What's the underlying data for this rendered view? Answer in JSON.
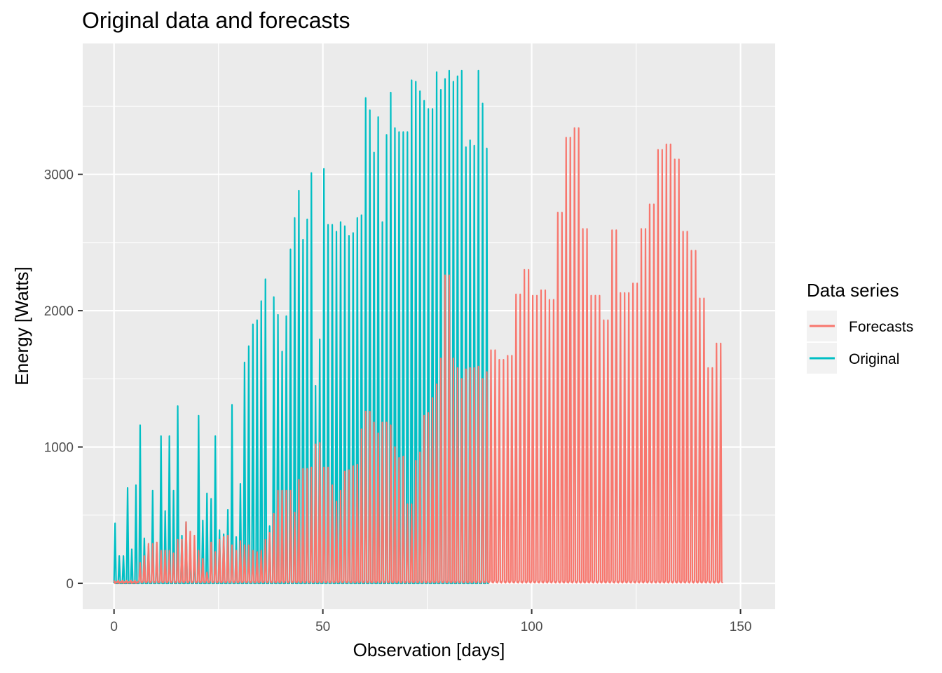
{
  "chart_data": {
    "type": "line",
    "title": "Original data and forecasts",
    "xlabel": "Observation [days]",
    "ylabel": "Energy [Watts]",
    "xlim": [
      -7.5,
      158.3
    ],
    "ylim": [
      -190,
      3960
    ],
    "x_ticks": [
      0,
      50,
      100,
      150
    ],
    "y_ticks": [
      0,
      1000,
      2000,
      3000
    ],
    "x_tick_labels": [
      "0",
      "50",
      "100",
      "150"
    ],
    "y_tick_labels": [
      "0",
      "1000",
      "2000",
      "3000"
    ],
    "grid": true,
    "legend": {
      "title": "Data series",
      "position": "right"
    },
    "background": "#ebebeb",
    "x_step_days": 0.25,
    "series": [
      {
        "name": "Forecasts",
        "color": "#f8766d",
        "daily_peaks": [
          0,
          0,
          0,
          0,
          0,
          0,
          150,
          200,
          290,
          290,
          300,
          240,
          240,
          240,
          220,
          320,
          320,
          450,
          380,
          350,
          240,
          180,
          80,
          300,
          230,
          320,
          340,
          350,
          280,
          240,
          310,
          280,
          280,
          240,
          230,
          240,
          320,
          370,
          510,
          680,
          680,
          680,
          680,
          520,
          760,
          840,
          840,
          850,
          1020,
          1030,
          850,
          850,
          720,
          600,
          680,
          820,
          830,
          860,
          870,
          1130,
          1260,
          1260,
          1180,
          1100,
          1180,
          1180,
          1160,
          1000,
          920,
          930,
          580,
          580,
          900,
          960,
          1230,
          1250,
          1360,
          1460,
          1650,
          2260,
          2260,
          1650,
          1580,
          1500,
          1570,
          1580,
          1580,
          1590,
          1500,
          1550,
          1710,
          1710,
          1640,
          1640,
          1670,
          1670,
          2120,
          2120,
          2300,
          2300,
          2110,
          2110,
          2150,
          2150,
          2080,
          2080,
          2720,
          2720,
          3270,
          3270,
          3340,
          3340,
          2600,
          2600,
          2110,
          2110,
          2110,
          1930,
          1930,
          2590,
          2590,
          2130,
          2130,
          2130,
          2200,
          2200,
          2600,
          2600,
          2780,
          2780,
          3180,
          3180,
          3220,
          3220,
          3110,
          3110,
          2580,
          2580,
          2440,
          2440,
          2090,
          2090,
          1580,
          1580,
          1760,
          1760
        ],
        "night_baseline": 20
      },
      {
        "name": "Original",
        "color": "#00bfc4",
        "daily_peaks": [
          440,
          200,
          200,
          700,
          250,
          720,
          1160,
          330,
          270,
          680,
          260,
          1080,
          530,
          1080,
          680,
          1300,
          350,
          450,
          280,
          250,
          1230,
          460,
          660,
          620,
          1080,
          390,
          360,
          540,
          1310,
          340,
          730,
          1620,
          1740,
          1900,
          1930,
          2070,
          2230,
          420,
          2100,
          1970,
          1700,
          1960,
          2450,
          2680,
          2880,
          2520,
          2670,
          3010,
          1450,
          1790,
          3040,
          2630,
          2630,
          2580,
          2650,
          2620,
          2550,
          2570,
          2680,
          2700,
          3560,
          3470,
          3160,
          3420,
          2650,
          3290,
          3600,
          3340,
          3310,
          3310,
          3310,
          3690,
          3680,
          3610,
          3540,
          3480,
          3480,
          3750,
          3620,
          3700,
          3760,
          3680,
          3720,
          3760,
          3200,
          3250,
          3210,
          3760,
          3520,
          3190
        ],
        "night_baseline": 0
      }
    ]
  }
}
